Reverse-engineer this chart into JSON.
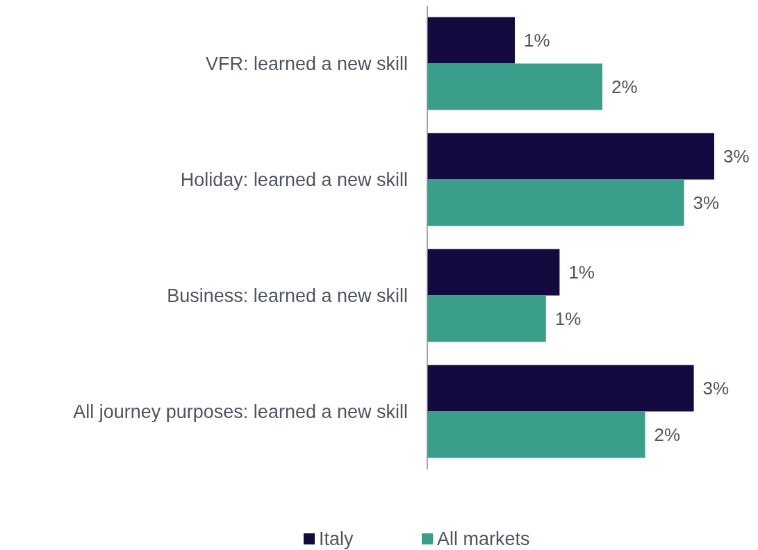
{
  "chart_data": {
    "type": "bar",
    "orientation": "horizontal",
    "categories": [
      "VFR: learned a new skill",
      "Holiday: learned a new skill",
      "Business: learned a new skill",
      "All journey purposes: learned a new skill"
    ],
    "tick_labels": "y",
    "legend": "bottom",
    "series": [
      {
        "name": "Italy",
        "color": "#140a3f",
        "values": [
          0.9,
          2.95,
          1.36,
          2.74
        ],
        "value_labels": [
          "1%",
          "3%",
          "1%",
          "3%"
        ]
      },
      {
        "name": "All markets",
        "color": "#3a9e8a",
        "values": [
          1.8,
          2.64,
          1.22,
          2.24
        ],
        "value_labels": [
          "2%",
          "3%",
          "1%",
          "2%"
        ]
      }
    ]
  }
}
